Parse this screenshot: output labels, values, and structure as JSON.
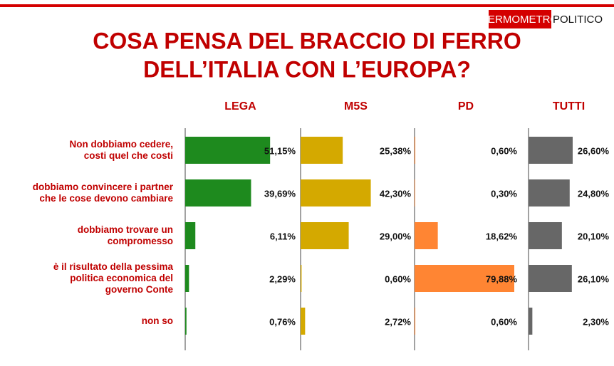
{
  "logo": [
    "TERMOMETRO",
    "POLITICO"
  ],
  "chart_data": {
    "type": "bar",
    "title": [
      "COSA PENSA DEL BRACCIO DI FERRO",
      "DELL’ITALIA CON L’EUROPA?"
    ],
    "categories": [
      "Non dobbiamo cedere,\ncosti quel che costi",
      "dobbiamo convincere i partner\nche le cose devono cambiare",
      "dobbiamo trovare un\ncompromesso",
      "è il risultato della pessima\npolitica economica del\ngoverno Conte",
      "non so"
    ],
    "series": [
      {
        "name": "LEGA",
        "color": "#1e8a1e",
        "values": [
          51.15,
          39.69,
          6.11,
          2.29,
          0.76
        ],
        "value_labels": [
          "51,15%",
          "39,69%",
          "6,11%",
          "2,29%",
          "0,76%"
        ]
      },
      {
        "name": "M5S",
        "color": "#d4a900",
        "values": [
          25.38,
          42.3,
          29.0,
          0.6,
          2.72
        ],
        "value_labels": [
          "25,38%",
          "42,30%",
          "29,00%",
          "0,60%",
          "2,72%"
        ]
      },
      {
        "name": "PD",
        "color": "#ff8533",
        "values": [
          0.6,
          0.3,
          18.62,
          79.88,
          0.6
        ],
        "value_labels": [
          "0,60%",
          "0,30%",
          "18,62%",
          "79,88%",
          "0,60%"
        ]
      },
      {
        "name": "TUTTI",
        "color": "#676767",
        "values": [
          26.6,
          24.8,
          20.1,
          26.1,
          2.3
        ],
        "value_labels": [
          "26,60%",
          "24,80%",
          "20,10%",
          "26,10%",
          "2,30%"
        ]
      }
    ]
  }
}
